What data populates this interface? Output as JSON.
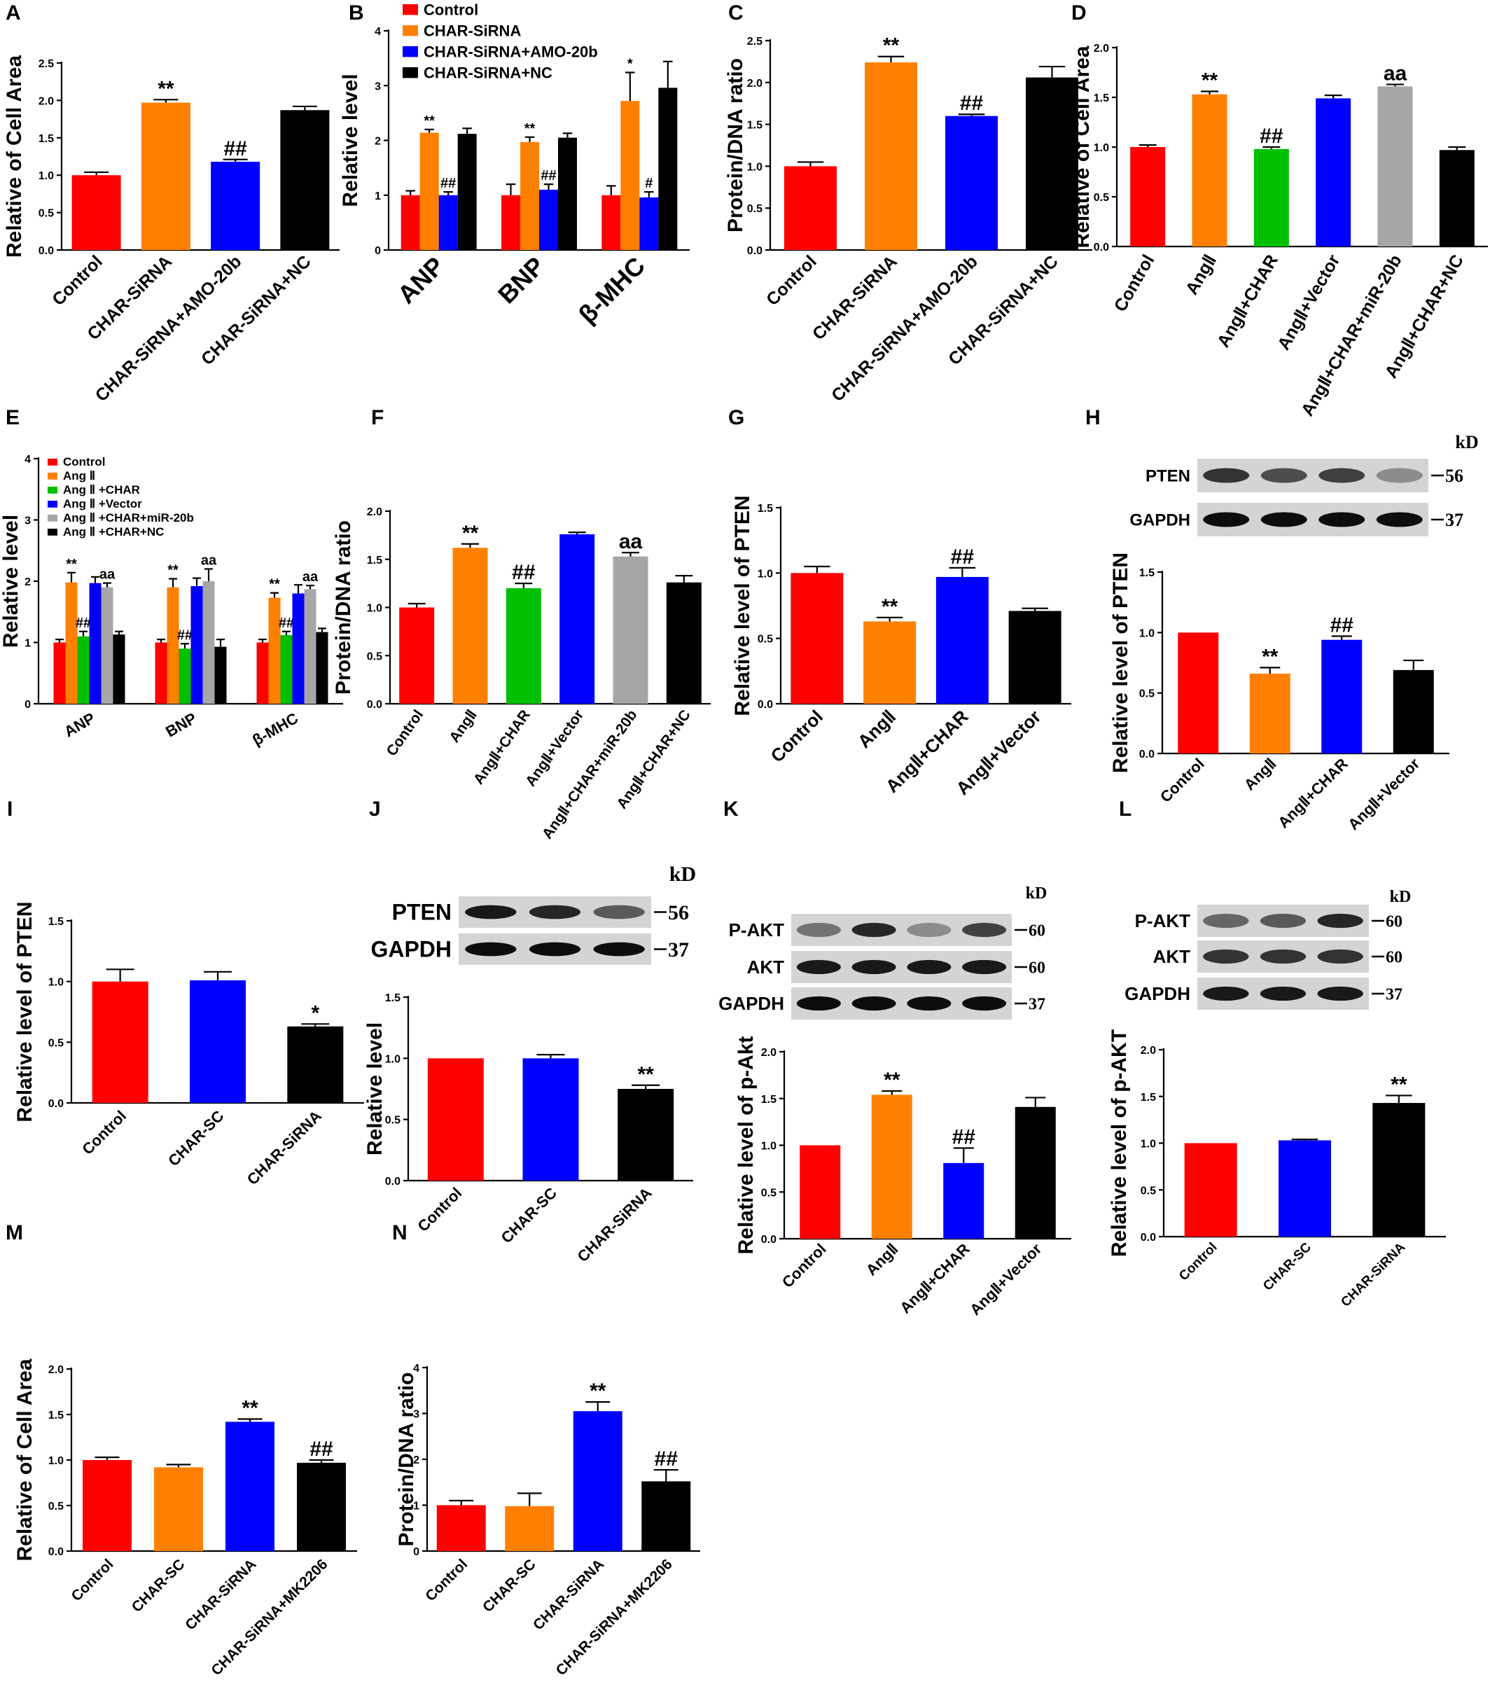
{
  "colors": {
    "red": "#ff0000",
    "orange": "#ff8000",
    "blue": "#0000ff",
    "green": "#00c000",
    "gray": "#a6a6a6",
    "black": "#000000"
  },
  "chart_data": [
    {
      "panel": "A",
      "type": "bar",
      "ylabel": "Relative of Cell Area",
      "ylim": [
        0,
        2.5
      ],
      "yticks": [
        "0.0",
        "0.5",
        "1.0",
        "1.5",
        "2.0",
        "2.5"
      ],
      "categories": [
        "Control",
        "CHAR-SiRNA",
        "CHAR-SiRNA+AMO-20b",
        "CHAR-SiRNA+NC"
      ],
      "values": [
        1.0,
        1.97,
        1.18,
        1.87
      ],
      "errors": [
        0.04,
        0.04,
        0.03,
        0.05
      ],
      "colors": [
        "red",
        "orange",
        "blue",
        "black"
      ],
      "annotations": [
        "",
        "**",
        "##",
        ""
      ]
    },
    {
      "panel": "B",
      "type": "bar",
      "ylabel": "Relative level",
      "ylim": [
        0,
        4
      ],
      "yticks": [
        "0",
        "1",
        "2",
        "3",
        "4"
      ],
      "categories": [
        "ANP",
        "BNP",
        "β-MHC"
      ],
      "series": [
        {
          "name": "Control",
          "color": "red",
          "values": [
            1.0,
            1.0,
            1.0
          ],
          "errors": [
            0.08,
            0.2,
            0.17
          ],
          "annotations": [
            "",
            "",
            ""
          ]
        },
        {
          "name": "CHAR-SiRNA",
          "color": "orange",
          "values": [
            2.14,
            1.97,
            2.72
          ],
          "errors": [
            0.06,
            0.09,
            0.52
          ],
          "annotations": [
            "**",
            "**",
            "*"
          ]
        },
        {
          "name": "CHAR-SiRNA+AMO-20b",
          "color": "blue",
          "values": [
            1.0,
            1.1,
            0.96
          ],
          "errors": [
            0.06,
            0.1,
            0.1
          ],
          "annotations": [
            "##",
            "##",
            "#"
          ]
        },
        {
          "name": "CHAR-SiRNA+NC",
          "color": "black",
          "values": [
            2.12,
            2.05,
            2.96
          ],
          "errors": [
            0.1,
            0.08,
            0.48
          ],
          "annotations": [
            "",
            "",
            ""
          ]
        }
      ]
    },
    {
      "panel": "C",
      "type": "bar",
      "ylabel": "Protein/DNA ratio",
      "ylim": [
        0,
        2.5
      ],
      "yticks": [
        "0.0",
        "0.5",
        "1.0",
        "1.5",
        "2.0",
        "2.5"
      ],
      "categories": [
        "Control",
        "CHAR-SiRNA",
        "CHAR-SiRNA+AMO-20b",
        "CHAR-SiRNA+NC"
      ],
      "values": [
        1.0,
        2.24,
        1.6,
        2.06
      ],
      "errors": [
        0.05,
        0.07,
        0.02,
        0.13
      ],
      "colors": [
        "red",
        "orange",
        "blue",
        "black"
      ],
      "annotations": [
        "",
        "**",
        "##",
        ""
      ]
    },
    {
      "panel": "D",
      "type": "bar",
      "ylabel": "Relative of Cell Area",
      "ylim": [
        0,
        2.0
      ],
      "yticks": [
        "0.0",
        "0.5",
        "1.0",
        "1.5",
        "2.0"
      ],
      "categories": [
        "Control",
        "AngⅡ",
        "AngⅡ+CHAR",
        "AngⅡ+Vector",
        "AngⅡ+CHAR+miR-20b",
        "AngⅡ+CHAR+NC"
      ],
      "values": [
        1.0,
        1.53,
        0.98,
        1.49,
        1.61,
        0.97
      ],
      "errors": [
        0.02,
        0.03,
        0.02,
        0.03,
        0.02,
        0.03
      ],
      "colors": [
        "red",
        "orange",
        "green",
        "blue",
        "gray",
        "black"
      ],
      "annotations": [
        "",
        "**",
        "##",
        "",
        "aa",
        ""
      ]
    },
    {
      "panel": "E",
      "type": "bar",
      "ylabel": "Relative level",
      "ylim": [
        0,
        4
      ],
      "yticks": [
        "0",
        "1",
        "2",
        "3",
        "4"
      ],
      "categories": [
        "ANP",
        "BNP",
        "β-MHC"
      ],
      "series": [
        {
          "name": "Control",
          "color": "red",
          "values": [
            1.0,
            1.0,
            1.0
          ],
          "errors": [
            0.05,
            0.05,
            0.05
          ],
          "annotations": [
            "",
            "",
            ""
          ]
        },
        {
          "name": "Ang Ⅱ",
          "color": "orange",
          "values": [
            1.98,
            1.9,
            1.73
          ],
          "errors": [
            0.16,
            0.14,
            0.08
          ],
          "annotations": [
            "**",
            "**",
            "**"
          ]
        },
        {
          "name": "Ang Ⅱ +CHAR",
          "color": "green",
          "values": [
            1.1,
            0.9,
            1.12
          ],
          "errors": [
            0.08,
            0.08,
            0.06
          ],
          "annotations": [
            "##",
            "##",
            "##"
          ]
        },
        {
          "name": "Ang Ⅱ +Vector",
          "color": "blue",
          "values": [
            1.97,
            1.92,
            1.8
          ],
          "errors": [
            0.1,
            0.13,
            0.14
          ],
          "annotations": [
            "",
            "",
            ""
          ]
        },
        {
          "name": "Ang Ⅱ +CHAR+miR-20b",
          "color": "gray",
          "values": [
            1.9,
            2.0,
            1.87
          ],
          "errors": [
            0.07,
            0.2,
            0.06
          ],
          "annotations": [
            "aa",
            "aa",
            "aa"
          ]
        },
        {
          "name": "Ang Ⅱ +CHAR+NC",
          "color": "black",
          "values": [
            1.13,
            0.93,
            1.17
          ],
          "errors": [
            0.05,
            0.12,
            0.06
          ],
          "annotations": [
            "",
            "",
            ""
          ]
        }
      ]
    },
    {
      "panel": "F",
      "type": "bar",
      "ylabel": "Protein/DNA ratio",
      "ylim": [
        0,
        2.0
      ],
      "yticks": [
        "0.0",
        "0.5",
        "1.0",
        "1.5",
        "2.0"
      ],
      "categories": [
        "Control",
        "AngⅡ",
        "AngⅡ+CHAR",
        "AngⅡ+Vector",
        "AngⅡ+CHAR+miR-20b",
        "AngⅡ+CHAR+NC"
      ],
      "values": [
        1.0,
        1.62,
        1.2,
        1.76,
        1.53,
        1.26
      ],
      "errors": [
        0.04,
        0.04,
        0.05,
        0.02,
        0.04,
        0.07
      ],
      "colors": [
        "red",
        "orange",
        "green",
        "blue",
        "gray",
        "black"
      ],
      "annotations": [
        "",
        "**",
        "##",
        "",
        "aa",
        ""
      ]
    },
    {
      "panel": "G",
      "type": "bar",
      "ylabel": "Relative level of PTEN",
      "ylim": [
        0,
        1.5
      ],
      "yticks": [
        "0.0",
        "0.5",
        "1.0",
        "1.5"
      ],
      "categories": [
        "Control",
        "AngⅡ",
        "AngⅡ+CHAR",
        "AngⅡ+Vector"
      ],
      "values": [
        1.0,
        0.63,
        0.97,
        0.71
      ],
      "errors": [
        0.05,
        0.03,
        0.07,
        0.02
      ],
      "colors": [
        "red",
        "orange",
        "blue",
        "black"
      ],
      "annotations": [
        "",
        "**",
        "##",
        ""
      ]
    },
    {
      "panel": "H",
      "type": "bar",
      "ylabel": "Relative level of PTEN",
      "ylim": [
        0,
        1.5
      ],
      "yticks": [
        "0.0",
        "0.5",
        "1.0",
        "1.5"
      ],
      "categories": [
        "Control",
        "AngⅡ",
        "AngⅡ+CHAR",
        "AngⅡ+Vector"
      ],
      "values": [
        1.0,
        0.66,
        0.94,
        0.69
      ],
      "errors": [
        0,
        0.05,
        0.03,
        0.08
      ],
      "colors": [
        "red",
        "orange",
        "blue",
        "black"
      ],
      "annotations": [
        "",
        "**",
        "##",
        ""
      ]
    },
    {
      "panel": "I",
      "type": "bar",
      "ylabel": "Relative level of PTEN",
      "ylim": [
        0,
        1.5
      ],
      "yticks": [
        "0.0",
        "0.5",
        "1.0",
        "1.5"
      ],
      "categories": [
        "Control",
        "CHAR-SC",
        "CHAR-SiRNA"
      ],
      "values": [
        1.0,
        1.01,
        0.63
      ],
      "errors": [
        0.1,
        0.07,
        0.02
      ],
      "colors": [
        "red",
        "blue",
        "black"
      ],
      "annotations": [
        "",
        "",
        "*"
      ]
    },
    {
      "panel": "J",
      "type": "bar",
      "ylabel": "Relative level",
      "ylim": [
        0,
        1.5
      ],
      "yticks": [
        "0.0",
        "0.5",
        "1.0",
        "1.5"
      ],
      "categories": [
        "Control",
        "CHAR-SC",
        "CHAR-SiRNA"
      ],
      "values": [
        1.0,
        1.0,
        0.75
      ],
      "errors": [
        0,
        0.03,
        0.03
      ],
      "colors": [
        "red",
        "blue",
        "black"
      ],
      "annotations": [
        "",
        "",
        "**"
      ]
    },
    {
      "panel": "K",
      "type": "bar",
      "ylabel": "Relative level of p-Akt",
      "ylim": [
        0,
        2.0
      ],
      "yticks": [
        "0.0",
        "0.5",
        "1.0",
        "1.5",
        "2.0"
      ],
      "categories": [
        "Control",
        "AngⅡ",
        "AngⅡ+CHAR",
        "AngⅡ+Vector"
      ],
      "values": [
        1.0,
        1.54,
        0.81,
        1.41
      ],
      "errors": [
        0,
        0.04,
        0.16,
        0.1
      ],
      "colors": [
        "red",
        "orange",
        "blue",
        "black"
      ],
      "annotations": [
        "",
        "**",
        "##",
        ""
      ]
    },
    {
      "panel": "L",
      "type": "bar",
      "ylabel": "Relative level of p-AKT",
      "ylim": [
        0,
        2.0
      ],
      "yticks": [
        "0.0",
        "0.5",
        "1.0",
        "1.5",
        "2.0"
      ],
      "categories": [
        "Control",
        "CHAR-SC",
        "CHAR-SiRNA"
      ],
      "values": [
        1.0,
        1.03,
        1.43
      ],
      "errors": [
        0,
        0.01,
        0.08
      ],
      "colors": [
        "red",
        "blue",
        "black"
      ],
      "annotations": [
        "",
        "",
        "**"
      ]
    },
    {
      "panel": "M",
      "type": "bar",
      "ylabel": "Relative of Cell Area",
      "ylim": [
        0,
        2.0
      ],
      "yticks": [
        "0.0",
        "0.5",
        "1.0",
        "1.5",
        "2.0"
      ],
      "categories": [
        "Control",
        "CHAR-SC",
        "CHAR-SiRNA",
        "CHAR-SiRNA+MK2206"
      ],
      "values": [
        1.0,
        0.92,
        1.42,
        0.97
      ],
      "errors": [
        0.03,
        0.03,
        0.03,
        0.03
      ],
      "colors": [
        "red",
        "orange",
        "blue",
        "black"
      ],
      "annotations": [
        "",
        "",
        "**",
        "##"
      ]
    },
    {
      "panel": "N",
      "type": "bar",
      "ylabel": "Protein/DNA ratio",
      "ylim": [
        0,
        4
      ],
      "yticks": [
        "0",
        "1",
        "2",
        "3",
        "4"
      ],
      "categories": [
        "Control",
        "CHAR-SC",
        "CHAR-SiRNA",
        "CHAR-SiRNA+MK2206"
      ],
      "values": [
        1.0,
        0.98,
        3.05,
        1.52
      ],
      "errors": [
        0.1,
        0.28,
        0.2,
        0.25
      ],
      "colors": [
        "red",
        "orange",
        "blue",
        "black"
      ],
      "annotations": [
        "",
        "",
        "**",
        "##"
      ]
    }
  ],
  "blots": [
    {
      "panel": "H",
      "unit": "kD",
      "lanes": 4,
      "rows": [
        {
          "label": "PTEN",
          "kd": "56",
          "intensity": [
            0.8,
            0.7,
            0.75,
            0.45
          ]
        },
        {
          "label": "GAPDH",
          "kd": "37",
          "intensity": [
            0.95,
            0.95,
            0.95,
            0.95
          ]
        }
      ]
    },
    {
      "panel": "J",
      "unit": "kD",
      "lanes": 3,
      "rows": [
        {
          "label": "PTEN",
          "kd": "56",
          "intensity": [
            0.9,
            0.85,
            0.65
          ]
        },
        {
          "label": "GAPDH",
          "kd": "37",
          "intensity": [
            0.95,
            0.95,
            0.95
          ]
        }
      ]
    },
    {
      "panel": "K",
      "unit": "kD",
      "lanes": 4,
      "rows": [
        {
          "label": "P-AKT",
          "kd": "60",
          "intensity": [
            0.55,
            0.85,
            0.45,
            0.75
          ]
        },
        {
          "label": "AKT",
          "kd": "60",
          "intensity": [
            0.9,
            0.9,
            0.9,
            0.9
          ]
        },
        {
          "label": "GAPDH",
          "kd": "37",
          "intensity": [
            0.95,
            0.95,
            0.95,
            0.95
          ]
        }
      ]
    },
    {
      "panel": "L",
      "unit": "kD",
      "lanes": 3,
      "rows": [
        {
          "label": "P-AKT",
          "kd": "60",
          "intensity": [
            0.6,
            0.65,
            0.85
          ]
        },
        {
          "label": "AKT",
          "kd": "60",
          "intensity": [
            0.8,
            0.8,
            0.8
          ]
        },
        {
          "label": "GAPDH",
          "kd": "37",
          "intensity": [
            0.9,
            0.9,
            0.9
          ]
        }
      ]
    }
  ]
}
